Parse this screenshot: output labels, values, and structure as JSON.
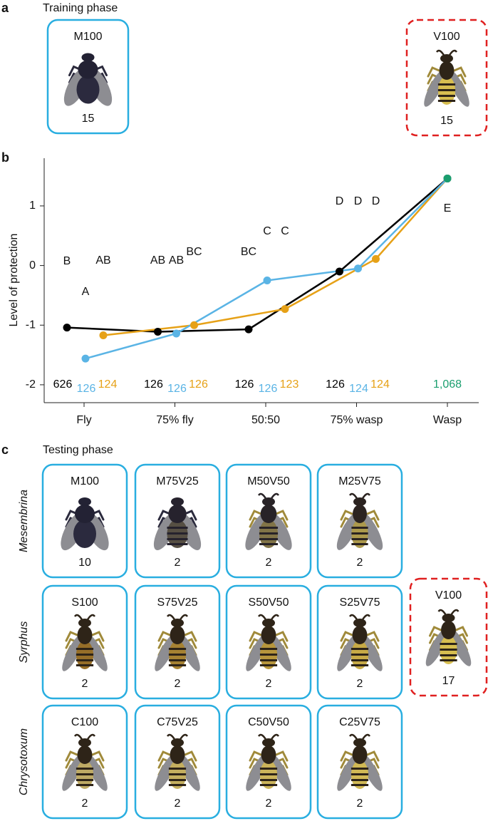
{
  "panel_a": {
    "label": "a",
    "title": "Training phase",
    "cards": [
      {
        "label": "M100",
        "count": "15"
      },
      {
        "label": "V100",
        "count": "15"
      }
    ]
  },
  "chart_data": {
    "label": "b",
    "type": "line",
    "ylabel": "Level of protection",
    "categories": [
      "Fly",
      "75% fly",
      "50:50",
      "75% wasp",
      "Wasp"
    ],
    "ylim": [
      -2.3,
      1.8
    ],
    "yticks": [
      -2,
      -1,
      0,
      1
    ],
    "series": [
      {
        "color": "#000000",
        "values": [
          -1.04,
          -1.11,
          -1.07,
          -0.1,
          1.46
        ],
        "letters": [
          "B",
          "AB",
          "BC",
          "D",
          null
        ],
        "n_labels": [
          "626",
          "126",
          "126",
          "126",
          null
        ]
      },
      {
        "color": "#5ab4e5",
        "values": [
          -1.56,
          -1.14,
          -0.25,
          -0.05,
          1.46
        ],
        "letters": [
          "A",
          "AB",
          "C",
          "D",
          null
        ],
        "n_labels": [
          "126",
          "126",
          "126",
          "124",
          null
        ]
      },
      {
        "color": "#e6a117",
        "values": [
          -1.17,
          -1.0,
          -0.73,
          0.11,
          1.46
        ],
        "letters": [
          "AB",
          "BC",
          "C",
          "D",
          null
        ],
        "n_labels": [
          "124",
          "126",
          "123",
          "124",
          null
        ]
      },
      {
        "color": "#1a9e6e",
        "values": [
          null,
          null,
          null,
          null,
          1.46
        ],
        "letters": [
          null,
          null,
          null,
          null,
          "E"
        ],
        "n_labels": [
          null,
          null,
          null,
          null,
          "1,068"
        ]
      }
    ]
  },
  "panel_c": {
    "label": "c",
    "title": "Testing phase",
    "rows": [
      {
        "genus": "Mesembrina",
        "cards": [
          {
            "label": "M100",
            "count": "10"
          },
          {
            "label": "M75V25",
            "count": "2"
          },
          {
            "label": "M50V50",
            "count": "2"
          },
          {
            "label": "M25V75",
            "count": "2"
          }
        ]
      },
      {
        "genus": "Syrphus",
        "cards": [
          {
            "label": "S100",
            "count": "2"
          },
          {
            "label": "S75V25",
            "count": "2"
          },
          {
            "label": "S50V50",
            "count": "2"
          },
          {
            "label": "S25V75",
            "count": "2"
          }
        ]
      },
      {
        "genus": "Chrysotoxum",
        "cards": [
          {
            "label": "C100",
            "count": "2"
          },
          {
            "label": "C75V25",
            "count": "2"
          },
          {
            "label": "C50V50",
            "count": "2"
          },
          {
            "label": "C25V75",
            "count": "2"
          }
        ]
      }
    ],
    "model_card": {
      "label": "V100",
      "count": "17"
    }
  }
}
